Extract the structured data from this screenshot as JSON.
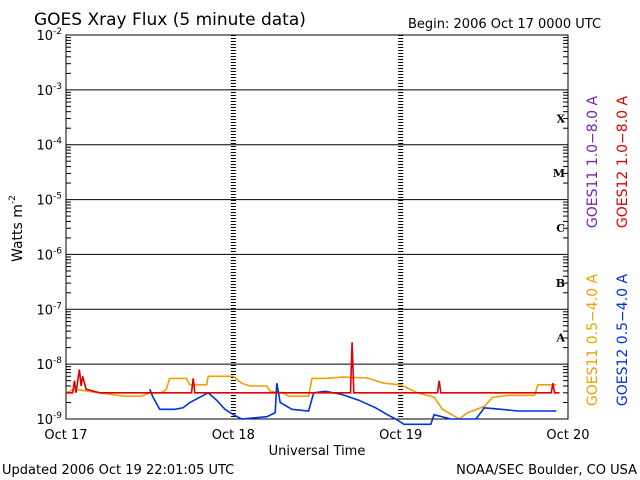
{
  "chart_data": {
    "type": "line",
    "title": "GOES Xray Flux (5 minute data)",
    "begin_label": "Begin:  2006 Oct 17 0000 UTC",
    "ylabel": "Watts m",
    "ylabel_sup": "-2",
    "xlabel": "Universal Time",
    "x_ticks": [
      "Oct 17",
      "Oct 18",
      "Oct 19",
      "Oct 20"
    ],
    "y_scale": "log",
    "ylim": [
      1e-09,
      0.01
    ],
    "y_ticks": [
      {
        "base": "10",
        "exp": "-2"
      },
      {
        "base": "10",
        "exp": "-3"
      },
      {
        "base": "10",
        "exp": "-4"
      },
      {
        "base": "10",
        "exp": "-5"
      },
      {
        "base": "10",
        "exp": "-6"
      },
      {
        "base": "10",
        "exp": "-7"
      },
      {
        "base": "10",
        "exp": "-8"
      },
      {
        "base": "10",
        "exp": "-9"
      }
    ],
    "flare_classes": [
      {
        "label": "X",
        "decade": -4
      },
      {
        "label": "M",
        "decade": -5
      },
      {
        "label": "C",
        "decade": -6
      },
      {
        "label": "B",
        "decade": -7
      },
      {
        "label": "A",
        "decade": -8
      }
    ],
    "legend_upper": [
      {
        "label": "GOES11 1.0−8.0 A",
        "color": "#8020b0"
      },
      {
        "label": "GOES12 1.0−8.0 A",
        "color": "#e00000"
      }
    ],
    "legend_lower": [
      {
        "label": "GOES11 0.5−4.0 A",
        "color": "#f0a000"
      },
      {
        "label": "GOES12 0.5−4.0 A",
        "color": "#0030e0"
      }
    ],
    "series": [
      {
        "name": "GOES11 0.5−4.0 A",
        "color": "#f0a000",
        "points": [
          [
            0,
            3e-09
          ],
          [
            0.05,
            3.5e-09
          ],
          [
            0.2,
            3e-09
          ],
          [
            0.35,
            2.6e-09
          ],
          [
            0.45,
            2.6e-09
          ],
          [
            0.5,
            3e-09
          ],
          [
            0.57,
            3e-09
          ],
          [
            0.6,
            3.5e-09
          ],
          [
            0.62,
            5.5e-09
          ],
          [
            0.72,
            5.5e-09
          ],
          [
            0.74,
            4.2e-09
          ],
          [
            0.84,
            4.2e-09
          ],
          [
            0.85,
            6e-09
          ],
          [
            1.0,
            6e-09
          ],
          [
            1.05,
            4.5e-09
          ],
          [
            1.1,
            4e-09
          ],
          [
            1.2,
            4e-09
          ],
          [
            1.22,
            3.2e-09
          ],
          [
            1.3,
            3e-09
          ],
          [
            1.33,
            2.6e-09
          ],
          [
            1.45,
            2.6e-09
          ],
          [
            1.47,
            5.5e-09
          ],
          [
            1.55,
            5.5e-09
          ],
          [
            1.65,
            5.8e-09
          ],
          [
            1.8,
            5.6e-09
          ],
          [
            1.9,
            4.5e-09
          ],
          [
            2.0,
            4.2e-09
          ],
          [
            2.1,
            3e-09
          ],
          [
            2.2,
            2.5e-09
          ],
          [
            2.25,
            1.5e-09
          ],
          [
            2.35,
            1e-09
          ],
          [
            2.4,
            1.3e-09
          ],
          [
            2.5,
            1.7e-09
          ],
          [
            2.55,
            2.5e-09
          ],
          [
            2.65,
            2.7e-09
          ],
          [
            2.8,
            2.7e-09
          ],
          [
            2.82,
            4.2e-09
          ],
          [
            2.93,
            4.2e-09
          ]
        ]
      },
      {
        "name": "GOES12 0.5−4.0 A",
        "color": "#0030e0",
        "points": [
          [
            0.5,
            3.5e-09
          ],
          [
            0.52,
            2.5e-09
          ],
          [
            0.56,
            1.5e-09
          ],
          [
            0.65,
            1.5e-09
          ],
          [
            0.7,
            1.6e-09
          ],
          [
            0.74,
            2e-09
          ],
          [
            0.8,
            2.5e-09
          ],
          [
            0.85,
            3e-09
          ],
          [
            0.9,
            2.2e-09
          ],
          [
            0.95,
            1.5e-09
          ],
          [
            1.0,
            1.2e-09
          ],
          [
            1.05,
            1e-09
          ],
          [
            1.2,
            1.1e-09
          ],
          [
            1.25,
            1.3e-09
          ],
          [
            1.26,
            4.5e-09
          ],
          [
            1.28,
            2e-09
          ],
          [
            1.35,
            1.5e-09
          ],
          [
            1.45,
            1.4e-09
          ],
          [
            1.48,
            3e-09
          ],
          [
            1.55,
            3.2e-09
          ],
          [
            1.65,
            2.8e-09
          ],
          [
            1.75,
            2.2e-09
          ],
          [
            1.85,
            1.6e-09
          ],
          [
            1.92,
            1.2e-09
          ],
          [
            1.97,
            1e-09
          ],
          [
            2.02,
            8e-10
          ],
          [
            2.18,
            8e-10
          ],
          [
            2.2,
            1.2e-09
          ],
          [
            2.3,
            1e-09
          ],
          [
            2.45,
            1e-09
          ],
          [
            2.5,
            1.6e-09
          ],
          [
            2.6,
            1.5e-09
          ],
          [
            2.7,
            1.4e-09
          ],
          [
            2.93,
            1.4e-09
          ]
        ]
      },
      {
        "name": "GOES12 1.0−8.0 A",
        "color": "#e00000",
        "points": [
          [
            0,
            3e-09
          ],
          [
            0.04,
            3e-09
          ],
          [
            0.05,
            5e-09
          ],
          [
            0.06,
            3e-09
          ],
          [
            0.08,
            8e-09
          ],
          [
            0.09,
            4e-09
          ],
          [
            0.1,
            6e-09
          ],
          [
            0.12,
            3.5e-09
          ],
          [
            0.2,
            3e-09
          ],
          [
            0.75,
            3e-09
          ],
          [
            0.76,
            5.5e-09
          ],
          [
            0.77,
            3e-09
          ],
          [
            1.7,
            3e-09
          ],
          [
            1.71,
            2.5e-08
          ],
          [
            1.72,
            3e-09
          ],
          [
            2.22,
            3e-09
          ],
          [
            2.23,
            5e-09
          ],
          [
            2.24,
            3e-09
          ],
          [
            2.9,
            3e-09
          ],
          [
            2.91,
            4.5e-09
          ],
          [
            2.92,
            3e-09
          ],
          [
            2.95,
            3e-09
          ]
        ]
      }
    ],
    "grid": true
  },
  "footer": {
    "updated": "Updated 2006 Oct 19 22:01:05 UTC",
    "credit": "NOAA/SEC Boulder, CO USA"
  }
}
